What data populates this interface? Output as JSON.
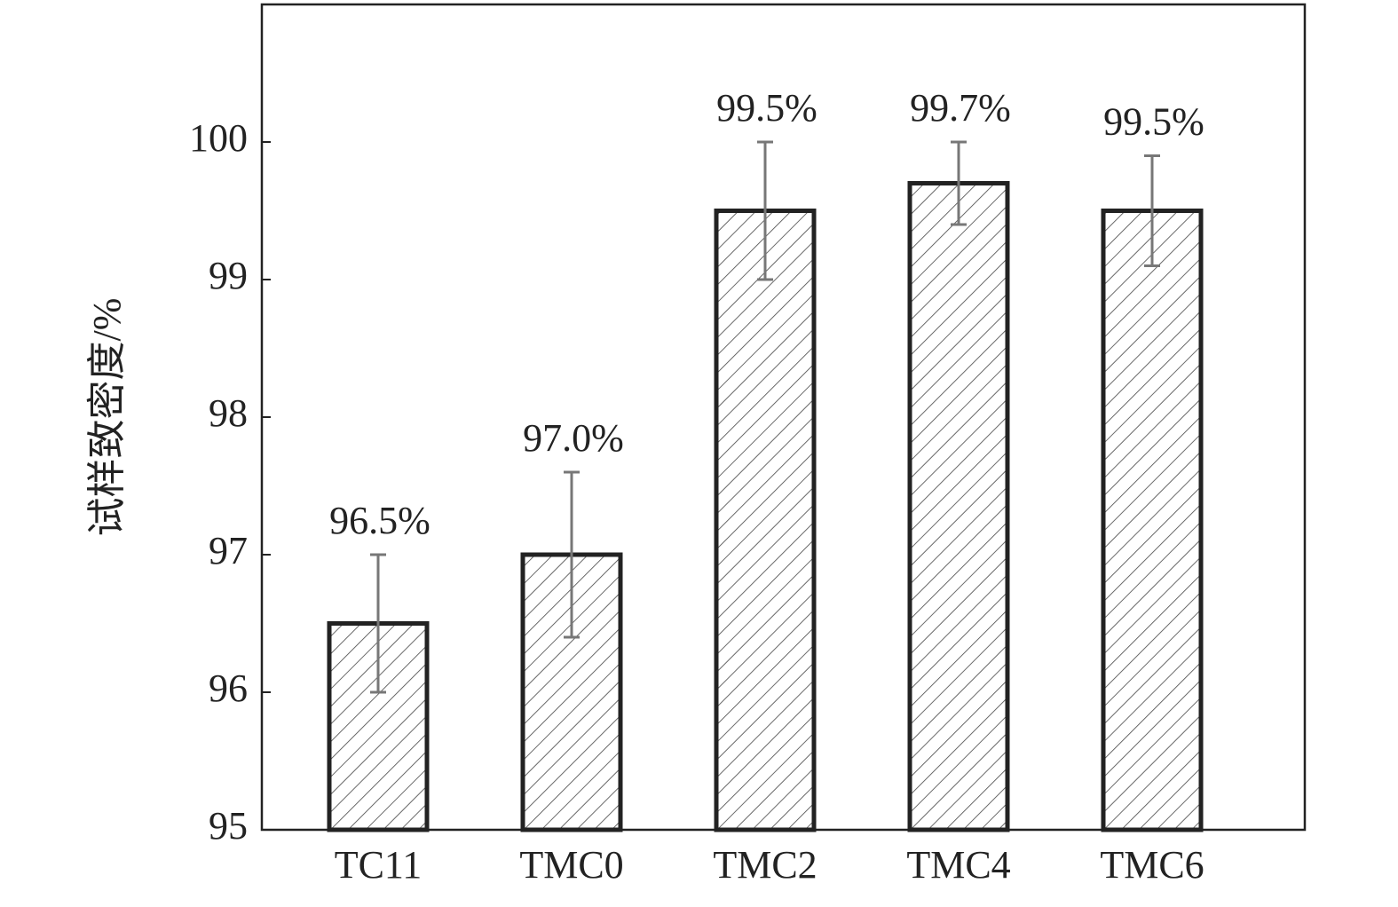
{
  "chart_data": {
    "type": "bar",
    "y_label": "试样致密度/%",
    "categories": [
      "TC11",
      "TMC0",
      "TMC2",
      "TMC4",
      "TMC6"
    ],
    "values": [
      96.5,
      97.0,
      99.5,
      99.7,
      99.5
    ],
    "value_labels": [
      "96.5%",
      "97.0%",
      "99.5%",
      "99.7%",
      "99.5%"
    ],
    "errors": [
      0.5,
      0.6,
      0.5,
      0.3,
      0.4
    ],
    "color": "#222222",
    "error_color": "#777777",
    "ylim": [
      95,
      101
    ],
    "yticks": [
      95,
      96,
      97,
      98,
      99,
      100
    ],
    "grid": false
  }
}
